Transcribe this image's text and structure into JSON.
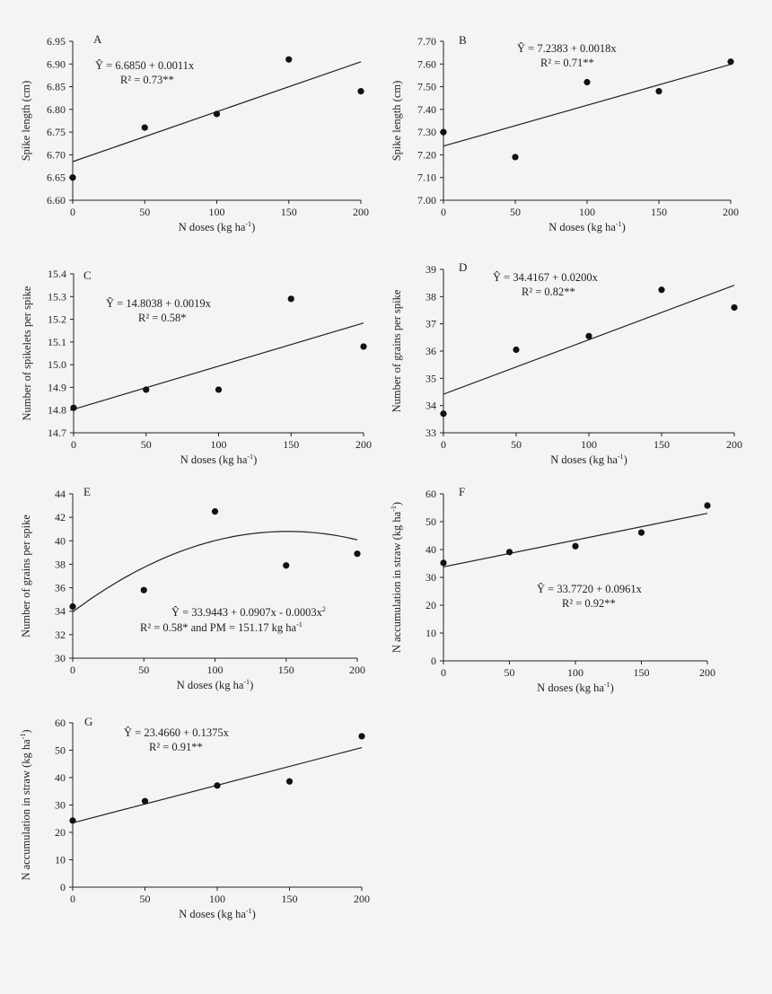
{
  "colors": {
    "background": "#f4f4f4",
    "ink": "#222222",
    "point": "#111111"
  },
  "chart_data": [
    {
      "type": "scatter",
      "panel_label": "A",
      "xlabel": "N doses (kg ha",
      "xlabel_unit_sup": "-1",
      "xlabel_close": ")",
      "ylabel": "Spike length (cm)",
      "x": [
        0,
        50,
        100,
        150,
        200
      ],
      "y": [
        6.65,
        6.76,
        6.79,
        6.91,
        6.84
      ],
      "xlim": [
        0,
        200
      ],
      "ylim": [
        6.6,
        6.95
      ],
      "xticks": [
        0,
        50,
        100,
        150,
        200
      ],
      "yticks": [
        6.6,
        6.65,
        6.7,
        6.75,
        6.8,
        6.85,
        6.9,
        6.95
      ],
      "ytick_decimals": 2,
      "fit": {
        "kind": "linear",
        "coef": [
          6.685,
          0.0011
        ]
      },
      "equation": "Ŷ = 6.6850 + 0.0011x",
      "r2": "R² = 0.73**"
    },
    {
      "type": "scatter",
      "panel_label": "B",
      "xlabel": "N doses (kg ha",
      "xlabel_unit_sup": "-1",
      "xlabel_close": ")",
      "ylabel": "Spike length (cm)",
      "x": [
        0,
        50,
        100,
        150,
        200
      ],
      "y": [
        7.3,
        7.19,
        7.52,
        7.48,
        7.61
      ],
      "xlim": [
        0,
        200
      ],
      "ylim": [
        7.0,
        7.7
      ],
      "xticks": [
        0,
        50,
        100,
        150,
        200
      ],
      "yticks": [
        7.0,
        7.1,
        7.2,
        7.3,
        7.4,
        7.5,
        7.6,
        7.7
      ],
      "ytick_decimals": 2,
      "fit": {
        "kind": "linear",
        "coef": [
          7.2383,
          0.0018
        ]
      },
      "equation": "Ŷ = 7.2383 + 0.0018x",
      "r2": "R² = 0.71**"
    },
    {
      "type": "scatter",
      "panel_label": "C",
      "xlabel": "N doses (kg ha",
      "xlabel_unit_sup": "-1",
      "xlabel_close": ")",
      "ylabel": "Number of spikelets per spike",
      "x": [
        0,
        50,
        100,
        150,
        200
      ],
      "y": [
        14.81,
        14.89,
        14.89,
        15.29,
        15.08
      ],
      "xlim": [
        0,
        200
      ],
      "ylim": [
        14.7,
        15.4
      ],
      "xticks": [
        0,
        50,
        100,
        150,
        200
      ],
      "yticks": [
        14.7,
        14.8,
        14.9,
        15.0,
        15.1,
        15.2,
        15.3,
        15.4
      ],
      "ytick_decimals": 1,
      "fit": {
        "kind": "linear",
        "coef": [
          14.8038,
          0.0019
        ]
      },
      "equation": "Ŷ = 14.8038 + 0.0019x",
      "r2": "R² = 0.58*"
    },
    {
      "type": "scatter",
      "panel_label": "D",
      "xlabel": "N doses (kg ha",
      "xlabel_unit_sup": "-1",
      "xlabel_close": ")",
      "ylabel": "Number of grains per spike",
      "x": [
        0,
        50,
        100,
        150,
        200
      ],
      "y": [
        33.7,
        36.05,
        36.55,
        38.25,
        37.6
      ],
      "xlim": [
        0,
        200
      ],
      "ylim": [
        33,
        39
      ],
      "xticks": [
        0,
        50,
        100,
        150,
        200
      ],
      "yticks": [
        33,
        34,
        35,
        36,
        37,
        38,
        39
      ],
      "ytick_decimals": 0,
      "fit": {
        "kind": "linear",
        "coef": [
          34.4167,
          0.02
        ]
      },
      "equation": "Ŷ = 34.4167 + 0.0200x",
      "r2": "R² = 0.82**"
    },
    {
      "type": "scatter",
      "panel_label": "E",
      "xlabel": "N doses (kg ha",
      "xlabel_unit_sup": "-1",
      "xlabel_close": ")",
      "ylabel": "Number of grains per spike",
      "x": [
        0,
        50,
        100,
        150,
        200
      ],
      "y": [
        34.4,
        35.8,
        42.5,
        37.9,
        38.9
      ],
      "xlim": [
        0,
        200
      ],
      "ylim": [
        30,
        44
      ],
      "xticks": [
        0,
        50,
        100,
        150,
        200
      ],
      "yticks": [
        30,
        32,
        34,
        36,
        38,
        40,
        42,
        44
      ],
      "ytick_decimals": 0,
      "fit": {
        "kind": "quadratic",
        "coef": [
          33.9443,
          0.0907,
          -0.0003
        ]
      },
      "equation": "Ŷ = 33.9443 + 0.0907x - 0.0003x",
      "equation_sup": "2",
      "r2": "R² = 0.58* and PM = 151.17 kg ha",
      "r2_sup": "-1"
    },
    {
      "type": "scatter",
      "panel_label": "F",
      "xlabel": "N doses (kg ha",
      "xlabel_unit_sup": "-1",
      "xlabel_close": ")",
      "ylabel": "N accumulation in straw (kg ha",
      "ylabel_unit_sup": "-1",
      "ylabel_close": ")",
      "x": [
        0,
        50,
        100,
        150,
        200
      ],
      "y": [
        35.2,
        39.1,
        41.2,
        46.1,
        55.8
      ],
      "xlim": [
        0,
        200
      ],
      "ylim": [
        0,
        60
      ],
      "xticks": [
        0,
        50,
        100,
        150,
        200
      ],
      "yticks": [
        0,
        10,
        20,
        30,
        40,
        50,
        60
      ],
      "ytick_decimals": 0,
      "fit": {
        "kind": "linear",
        "coef": [
          33.772,
          0.0961
        ]
      },
      "equation": "Ŷ = 33.7720 + 0.0961x",
      "r2": "R² = 0.92**"
    },
    {
      "type": "scatter",
      "panel_label": "G",
      "xlabel": "N doses (kg ha",
      "xlabel_unit_sup": "-1",
      "xlabel_close": ")",
      "ylabel": "N accumulation in straw (kg ha",
      "ylabel_unit_sup": "-1",
      "ylabel_close": ")",
      "x": [
        0,
        50,
        100,
        150,
        200
      ],
      "y": [
        24.3,
        31.4,
        37.1,
        38.6,
        55.1
      ],
      "xlim": [
        0,
        200
      ],
      "ylim": [
        0,
        60
      ],
      "xticks": [
        0,
        50,
        100,
        150,
        200
      ],
      "yticks": [
        0,
        10,
        20,
        30,
        40,
        50,
        60
      ],
      "ytick_decimals": 0,
      "fit": {
        "kind": "linear",
        "coef": [
          23.466,
          0.1375
        ]
      },
      "equation": "Ŷ = 23.4660 + 0.1375x",
      "r2": "R² = 0.91**"
    }
  ]
}
